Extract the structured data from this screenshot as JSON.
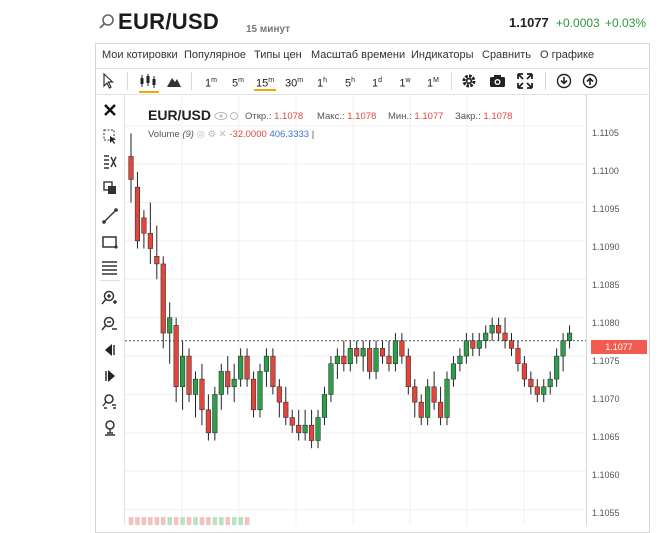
{
  "header": {
    "symbol": "EUR/USD",
    "interval": "15 минут",
    "last": "1.1077",
    "change": "+0.0003",
    "change_pct": "+0.03%",
    "up_color": "#2b9a3a"
  },
  "menu": [
    "Мои котировки",
    "Популярное",
    "Типы цен",
    "Масштаб времени",
    "Индикаторы",
    "Сравнить",
    "О графике"
  ],
  "toolbar": {
    "intervals": [
      {
        "label": "1",
        "sup": "m"
      },
      {
        "label": "5",
        "sup": "m"
      },
      {
        "label": "15",
        "sup": "m",
        "active": true
      },
      {
        "label": "30",
        "sup": "m"
      },
      {
        "label": "1",
        "sup": "h"
      },
      {
        "label": "5",
        "sup": "h"
      },
      {
        "label": "1",
        "sup": "d"
      },
      {
        "label": "1",
        "sup": "w"
      },
      {
        "label": "1",
        "sup": "M"
      }
    ],
    "icons": [
      "cursor-icon",
      "candles-icon",
      "mountain-icon",
      "gear-icon",
      "camera-icon",
      "fullscreen-icon",
      "download-icon",
      "upload-icon"
    ]
  },
  "tools": [
    "close-icon",
    "select-area-icon",
    "ruler-icon",
    "copy-icon",
    "trendline-icon",
    "rectangle-icon",
    "fibonacci-icon",
    "zoom-in-icon",
    "zoom-out-icon",
    "scroll-left-icon",
    "scroll-right-icon",
    "zoom-fit-icon",
    "reset-zoom-icon"
  ],
  "legend": {
    "symbol": "EUR/USD",
    "open_label": "Откр.:",
    "open": "1.1078",
    "high_label": "Макс.:",
    "high": "1.1078",
    "low_label": "Мин.:",
    "low": "1.1077",
    "close_label": "Закр.:",
    "close": "1.1078",
    "volume_label": "Volume",
    "volume_param": "(9)",
    "volume_value": "-32.0000",
    "volume_ma": "406.3333"
  },
  "price_axis": {
    "labels": [
      "1.1105",
      "1.1100",
      "1.1095",
      "1.1090",
      "1.1085",
      "1.1080",
      "1.1075",
      "1.1070",
      "1.1065",
      "1.1060",
      "1.1055"
    ],
    "last_tag": "1.1077"
  },
  "colors": {
    "up": "#2e9e4b",
    "down": "#e0473c",
    "accent": "#f0a800"
  },
  "chart_data": {
    "type": "candlestick",
    "ylim": [
      1.1053,
      1.1109
    ],
    "candles": [
      [
        1.1101,
        1.1104,
        1.1095,
        1.1098
      ],
      [
        1.1097,
        1.1099,
        1.1089,
        1.109
      ],
      [
        1.1093,
        1.1094,
        1.1089,
        1.1091
      ],
      [
        1.1091,
        1.1095,
        1.1087,
        1.1089
      ],
      [
        1.1088,
        1.1092,
        1.1085,
        1.1087
      ],
      [
        1.1087,
        1.1088,
        1.1076,
        1.1078
      ],
      [
        1.1078,
        1.1082,
        1.1074,
        1.108
      ],
      [
        1.1079,
        1.108,
        1.1069,
        1.1071
      ],
      [
        1.1071,
        1.1077,
        1.1068,
        1.1075
      ],
      [
        1.1075,
        1.1076,
        1.1069,
        1.107
      ],
      [
        1.107,
        1.1073,
        1.1067,
        1.1072
      ],
      [
        1.1072,
        1.1074,
        1.1066,
        1.1068
      ],
      [
        1.1068,
        1.107,
        1.1064,
        1.1065
      ],
      [
        1.1065,
        1.1071,
        1.1064,
        1.107
      ],
      [
        1.107,
        1.1074,
        1.1068,
        1.1073
      ],
      [
        1.1073,
        1.1075,
        1.107,
        1.1071
      ],
      [
        1.1071,
        1.1074,
        1.1069,
        1.1072
      ],
      [
        1.1072,
        1.1076,
        1.1071,
        1.1075
      ],
      [
        1.1075,
        1.1076,
        1.1071,
        1.1072
      ],
      [
        1.1072,
        1.1073,
        1.1067,
        1.1068
      ],
      [
        1.1068,
        1.1074,
        1.1067,
        1.1073
      ],
      [
        1.1073,
        1.1076,
        1.1071,
        1.1075
      ],
      [
        1.1075,
        1.1076,
        1.107,
        1.1071
      ],
      [
        1.1071,
        1.1072,
        1.1067,
        1.1069
      ],
      [
        1.1069,
        1.1071,
        1.1066,
        1.1067
      ],
      [
        1.1067,
        1.1068,
        1.1065,
        1.1066
      ],
      [
        1.1066,
        1.1068,
        1.1064,
        1.1065
      ],
      [
        1.1065,
        1.1068,
        1.1064,
        1.1066
      ],
      [
        1.1066,
        1.1068,
        1.1063,
        1.1064
      ],
      [
        1.1064,
        1.1068,
        1.1063,
        1.1067
      ],
      [
        1.1067,
        1.1071,
        1.1066,
        1.107
      ],
      [
        1.107,
        1.1075,
        1.1069,
        1.1074
      ],
      [
        1.1074,
        1.1076,
        1.1072,
        1.1075
      ],
      [
        1.1075,
        1.1077,
        1.1073,
        1.1074
      ],
      [
        1.1074,
        1.1077,
        1.1073,
        1.1076
      ],
      [
        1.1076,
        1.1077,
        1.1074,
        1.1075
      ],
      [
        1.1075,
        1.1077,
        1.1073,
        1.1076
      ],
      [
        1.1076,
        1.1077,
        1.1072,
        1.1073
      ],
      [
        1.1073,
        1.1077,
        1.1072,
        1.1076
      ],
      [
        1.1076,
        1.1077,
        1.1074,
        1.1075
      ],
      [
        1.1075,
        1.1077,
        1.1073,
        1.1074
      ],
      [
        1.1074,
        1.1078,
        1.1073,
        1.1077
      ],
      [
        1.1077,
        1.1078,
        1.1074,
        1.1075
      ],
      [
        1.1075,
        1.1076,
        1.107,
        1.1071
      ],
      [
        1.1071,
        1.1072,
        1.1067,
        1.1069
      ],
      [
        1.1069,
        1.107,
        1.1066,
        1.1067
      ],
      [
        1.1067,
        1.1072,
        1.1066,
        1.1071
      ],
      [
        1.1071,
        1.1073,
        1.1068,
        1.1069
      ],
      [
        1.1069,
        1.1071,
        1.1066,
        1.1067
      ],
      [
        1.1067,
        1.1073,
        1.1066,
        1.1072
      ],
      [
        1.1072,
        1.1075,
        1.1071,
        1.1074
      ],
      [
        1.1074,
        1.1076,
        1.1073,
        1.1075
      ],
      [
        1.1075,
        1.1078,
        1.1074,
        1.1077
      ],
      [
        1.1077,
        1.1078,
        1.1075,
        1.1076
      ],
      [
        1.1076,
        1.1078,
        1.1075,
        1.1077
      ],
      [
        1.1077,
        1.1079,
        1.1076,
        1.1078
      ],
      [
        1.1078,
        1.108,
        1.1077,
        1.1079
      ],
      [
        1.1079,
        1.108,
        1.1077,
        1.1078
      ],
      [
        1.1078,
        1.108,
        1.1076,
        1.1077
      ],
      [
        1.1077,
        1.1078,
        1.1075,
        1.1076
      ],
      [
        1.1076,
        1.1077,
        1.1073,
        1.1074
      ],
      [
        1.1074,
        1.1075,
        1.1071,
        1.1072
      ],
      [
        1.1072,
        1.1073,
        1.107,
        1.1071
      ],
      [
        1.1071,
        1.1072,
        1.1069,
        1.107
      ],
      [
        1.107,
        1.1072,
        1.1069,
        1.1071
      ],
      [
        1.1071,
        1.1073,
        1.107,
        1.1072
      ],
      [
        1.1072,
        1.1076,
        1.1071,
        1.1075
      ],
      [
        1.1075,
        1.1078,
        1.1073,
        1.1077
      ],
      [
        1.1077,
        1.1079,
        1.1076,
        1.1078
      ]
    ],
    "last_price": 1.1077
  }
}
